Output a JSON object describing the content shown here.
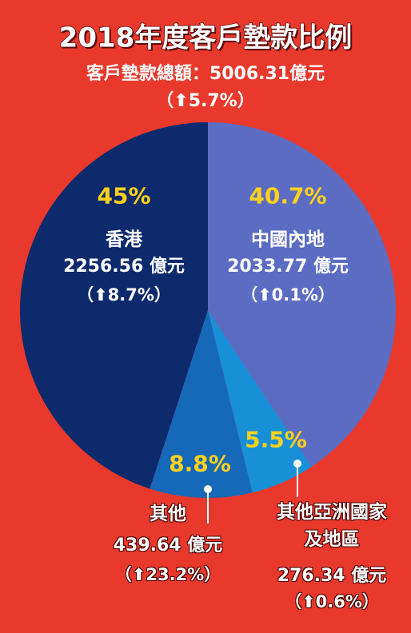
{
  "chart_data": {
    "type": "pie",
    "title": "2018年度客戶墊款比例",
    "subtitle": "客戶墊款總額：5006.31億元",
    "subtitle_change": "（⬆5.7%）",
    "categories": [
      "中國內地",
      "其他亞洲國家及地區",
      "其他",
      "香港"
    ],
    "values": [
      40.7,
      5.5,
      8.8,
      45
    ],
    "value_labels": [
      "40.7%",
      "5.5%",
      "8.8%",
      "45%"
    ],
    "amount_labels": [
      "2033.77 億元",
      "276.34 億元",
      "439.64 億元",
      "2256.56 億元"
    ],
    "change_labels": [
      "（⬆0.1%）",
      "（⬆0.6%）",
      "（⬆23.2%）",
      "（⬆8.7%）"
    ],
    "colors": [
      "#5b6cc2",
      "#1890d8",
      "#1668b8",
      "#0d2a6c"
    ]
  }
}
